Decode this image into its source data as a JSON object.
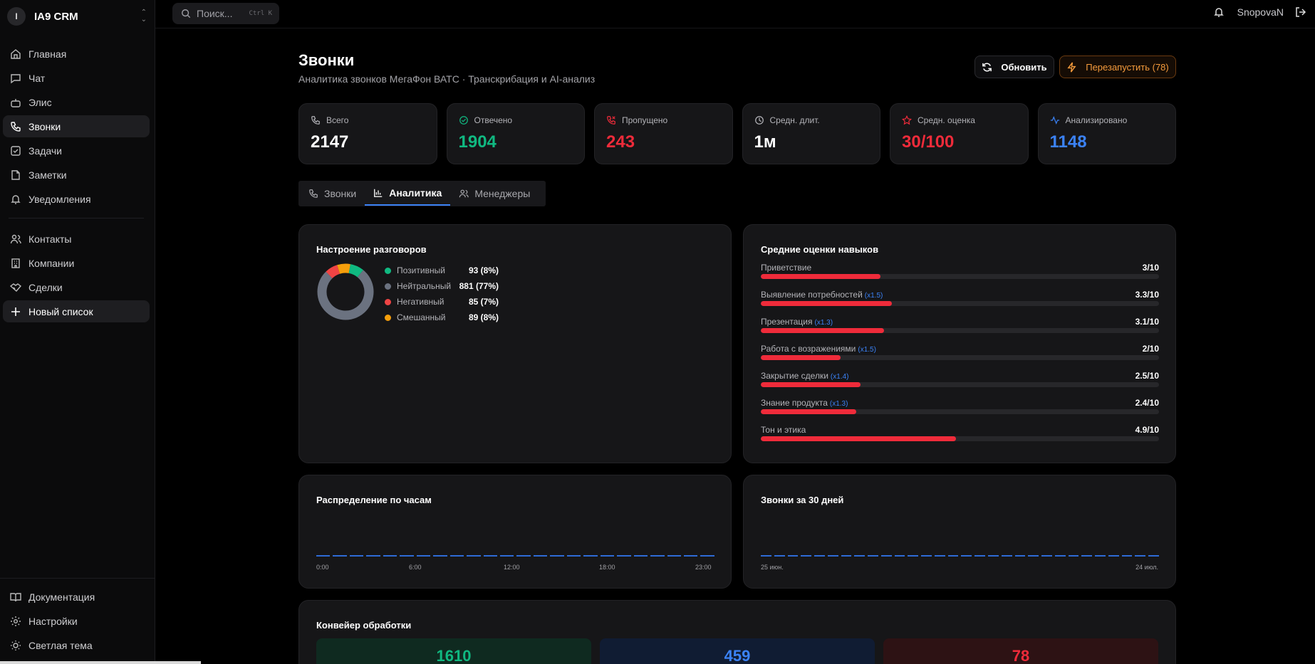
{
  "app": {
    "brand_initial": "I",
    "brand_name": "IA9 CRM"
  },
  "sidebar": {
    "items": [
      {
        "label": "Главная",
        "icon": "home-icon"
      },
      {
        "label": "Чат",
        "icon": "chat-icon"
      },
      {
        "label": "Элис",
        "icon": "bot-icon"
      },
      {
        "label": "Звонки",
        "icon": "phone-icon",
        "active": true
      },
      {
        "label": "Задачи",
        "icon": "checkbox-icon"
      },
      {
        "label": "Заметки",
        "icon": "note-icon"
      },
      {
        "label": "Уведомления",
        "icon": "bell-icon"
      }
    ],
    "items2": [
      {
        "label": "Контакты",
        "icon": "users-icon"
      },
      {
        "label": "Компании",
        "icon": "building-icon"
      },
      {
        "label": "Сделки",
        "icon": "handshake-icon"
      },
      {
        "label": "Новый список",
        "icon": "plus-icon"
      }
    ],
    "bottom": [
      {
        "label": "Документация",
        "icon": "book-icon"
      },
      {
        "label": "Настройки",
        "icon": "gear-icon"
      },
      {
        "label": "Светлая тема",
        "icon": "sun-icon"
      }
    ]
  },
  "search": {
    "placeholder": "Поиск...",
    "shortcut": "Ctrl K"
  },
  "user": {
    "name": "SnopovaN"
  },
  "page": {
    "title": "Звонки",
    "subtitle": "Аналитика звонков МегаФон ВАТС · Транскрибация и AI-анализ",
    "refresh_label": "Обновить",
    "restart_label": "Перезапустить (78)"
  },
  "stats": [
    {
      "label": "Всего",
      "value": "2147",
      "color": "#ffffff",
      "icon": "phone-icon"
    },
    {
      "label": "Отвечено",
      "value": "1904",
      "color": "#10b981",
      "icon": "check-circle-icon"
    },
    {
      "label": "Пропущено",
      "value": "243",
      "color": "#ef2b3a",
      "icon": "phone-missed-icon"
    },
    {
      "label": "Средн. длит.",
      "value": "1м",
      "color": "#ffffff",
      "icon": "clock-icon"
    },
    {
      "label": "Средн. оценка",
      "value": "30/100",
      "color": "#ef2b3a",
      "icon": "star-icon"
    },
    {
      "label": "Анализировано",
      "value": "1148",
      "color": "#3b82f6",
      "icon": "activity-icon"
    }
  ],
  "tabs": [
    {
      "label": "Звонки",
      "icon": "phone-icon"
    },
    {
      "label": "Аналитика",
      "icon": "bar-chart-icon",
      "active": true
    },
    {
      "label": "Менеджеры",
      "icon": "users-icon"
    }
  ],
  "sentiment": {
    "title": "Настроение разговоров",
    "items": [
      {
        "label": "Позитивный",
        "value": "93 (8%)",
        "count": 93,
        "color": "#10b981"
      },
      {
        "label": "Нейтральный",
        "value": "881 (77%)",
        "count": 881,
        "color": "#6b7280"
      },
      {
        "label": "Негативный",
        "value": "85 (7%)",
        "count": 85,
        "color": "#ef4444"
      },
      {
        "label": "Смешанный",
        "value": "89 (8%)",
        "count": 89,
        "color": "#f59e0b"
      }
    ]
  },
  "skills": {
    "title": "Средние оценки навыков",
    "items": [
      {
        "name": "Приветствие",
        "weight": "",
        "score": "3/10",
        "value": 3
      },
      {
        "name": "Выявление потребностей",
        "weight": "(x1.5)",
        "score": "3.3/10",
        "value": 3.3
      },
      {
        "name": "Презентация",
        "weight": "(x1.3)",
        "score": "3.1/10",
        "value": 3.1
      },
      {
        "name": "Работа с возражениями",
        "weight": "(x1.5)",
        "score": "2/10",
        "value": 2
      },
      {
        "name": "Закрытие сделки",
        "weight": "(x1.4)",
        "score": "2.5/10",
        "value": 2.5
      },
      {
        "name": "Знание продукта",
        "weight": "(x1.3)",
        "score": "2.4/10",
        "value": 2.4
      },
      {
        "name": "Тон и этика",
        "weight": "",
        "score": "4.9/10",
        "value": 4.9
      }
    ]
  },
  "hours": {
    "title": "Распределение по часам",
    "ticks": [
      "0:00",
      "6:00",
      "12:00",
      "18:00",
      "23:00"
    ]
  },
  "days": {
    "title": "Звонки за 30 дней",
    "start": "25 июн.",
    "end": "24 июл."
  },
  "pipeline": {
    "title": "Конвейер обработки",
    "boxes": [
      {
        "value": "1610",
        "color": "#10b981",
        "bg": "#0f2a20"
      },
      {
        "value": "459",
        "color": "#3b82f6",
        "bg": "#101c33"
      },
      {
        "value": "78",
        "color": "#ef2b3a",
        "bg": "#2d1214"
      }
    ]
  }
}
